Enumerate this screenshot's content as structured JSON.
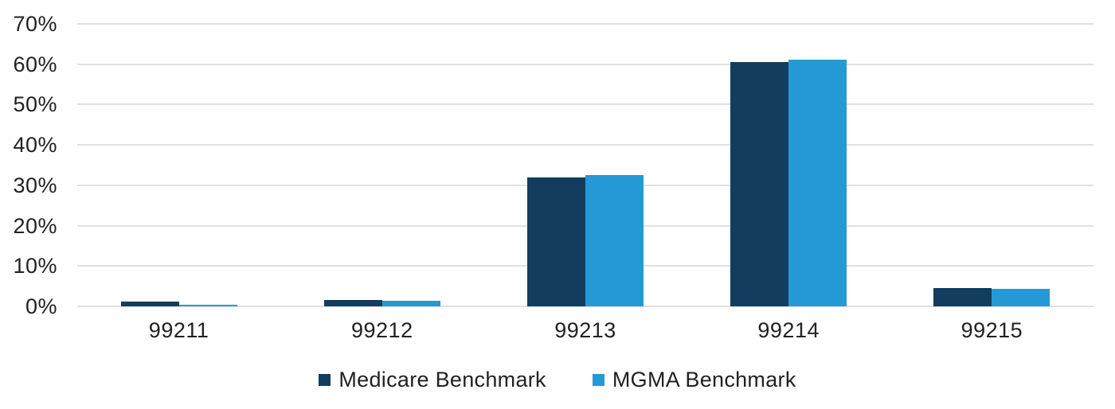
{
  "chart_data": {
    "type": "bar",
    "title": "",
    "xlabel": "",
    "ylabel": "",
    "categories": [
      "99211",
      "99212",
      "99213",
      "99214",
      "99215"
    ],
    "series": [
      {
        "name": "Medicare Benchmark",
        "color": "#123d5e",
        "values": [
          1.1,
          1.6,
          32.0,
          60.5,
          4.5
        ]
      },
      {
        "name": "MGMA Benchmark",
        "color": "#2599d5",
        "values": [
          0.4,
          1.3,
          32.5,
          61.2,
          4.4
        ]
      }
    ],
    "y_ticks": [
      "0%",
      "10%",
      "20%",
      "30%",
      "40%",
      "50%",
      "60%",
      "70%"
    ],
    "ylim": [
      0,
      70
    ],
    "grid": true,
    "legend_position": "bottom",
    "gridline_color": "#e0e0e0",
    "text_color": "#212121",
    "background_color": "#ffffff"
  }
}
